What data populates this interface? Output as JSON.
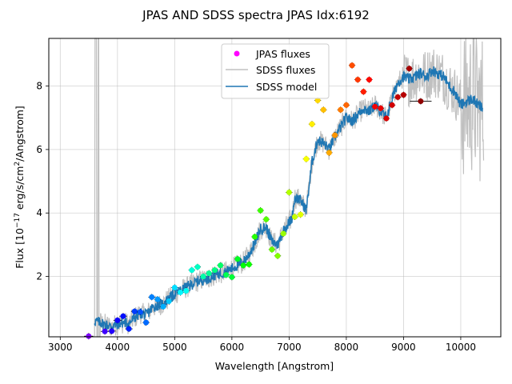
{
  "chart_data": {
    "type": "scatter",
    "title": "JPAS AND SDSS spectra JPAS Idx:6192",
    "xlabel": "Wavelength [Angstrom]",
    "ylabel_parts": {
      "pre": "Flux [10",
      "exp1": "−17",
      "mid": " erg/s/cm",
      "exp2": "2",
      "post": "/Angstrom]"
    },
    "xlim": [
      2800,
      10700
    ],
    "ylim": [
      0.1,
      9.5
    ],
    "grid": true,
    "xticks": [
      3000,
      4000,
      5000,
      6000,
      7000,
      8000,
      9000,
      10000
    ],
    "yticks": [
      2,
      4,
      6,
      8
    ],
    "legend": {
      "placement": "top-center",
      "entries": [
        {
          "label": "JPAS fluxes",
          "color": "#ff00ff",
          "kind": "marker"
        },
        {
          "label": "SDSS fluxes",
          "color": "#c0c0c0",
          "kind": "line"
        },
        {
          "label": "SDSS model",
          "color": "#1f77b4",
          "kind": "line"
        }
      ]
    },
    "series": [
      {
        "name": "JPAS fluxes",
        "points": [
          [
            3497,
            0.12,
            160
          ],
          [
            3780,
            0.27,
            145
          ],
          [
            3900,
            0.28,
            140
          ],
          [
            4000,
            0.62,
            140
          ],
          [
            4100,
            0.75,
            135
          ],
          [
            4200,
            0.35,
            130
          ],
          [
            4300,
            0.9,
            125
          ],
          [
            4400,
            0.88,
            120
          ],
          [
            4500,
            0.55,
            120
          ],
          [
            4600,
            1.35,
            120
          ],
          [
            4700,
            1.28,
            115
          ],
          [
            4800,
            1.05,
            115
          ],
          [
            4900,
            1.22,
            115
          ],
          [
            5000,
            1.65,
            115
          ],
          [
            5100,
            1.5,
            115
          ],
          [
            5200,
            1.55,
            115
          ],
          [
            5300,
            2.2,
            115
          ],
          [
            5400,
            2.3,
            115
          ],
          [
            5500,
            2.0,
            115
          ],
          [
            5600,
            2.1,
            115
          ],
          [
            5700,
            2.2,
            115
          ],
          [
            5800,
            2.35,
            115
          ],
          [
            5900,
            2.05,
            115
          ],
          [
            6000,
            1.98,
            115
          ],
          [
            6100,
            2.55,
            115
          ],
          [
            6200,
            2.35,
            115
          ],
          [
            6300,
            2.38,
            115
          ],
          [
            6400,
            3.25,
            115
          ],
          [
            6500,
            4.08,
            115
          ],
          [
            6600,
            3.8,
            115
          ],
          [
            6700,
            2.85,
            115
          ],
          [
            6800,
            2.65,
            115
          ],
          [
            6900,
            3.35,
            115
          ],
          [
            7000,
            4.65,
            115
          ],
          [
            7100,
            3.88,
            115
          ],
          [
            7200,
            3.95,
            115
          ],
          [
            7300,
            5.7,
            115
          ],
          [
            7400,
            6.8,
            115
          ],
          [
            7500,
            7.55,
            115
          ],
          [
            7600,
            7.25,
            115
          ],
          [
            7700,
            5.9,
            115
          ],
          [
            7800,
            6.45,
            115
          ],
          [
            7900,
            7.25,
            115
          ],
          [
            8000,
            7.4,
            115
          ],
          [
            8100,
            8.65,
            115
          ],
          [
            8200,
            8.2,
            115
          ],
          [
            8300,
            7.82,
            115
          ],
          [
            8400,
            8.2,
            115
          ],
          [
            8500,
            7.35,
            115
          ],
          [
            8600,
            7.3,
            115
          ],
          [
            8700,
            6.98,
            115
          ],
          [
            8800,
            7.4,
            115
          ],
          [
            8900,
            7.65,
            115
          ],
          [
            9000,
            7.72,
            115
          ],
          [
            9100,
            8.55,
            115
          ],
          [
            9300,
            7.52,
            380
          ]
        ]
      }
    ],
    "sdss_model": {
      "name": "SDSS model",
      "start": 3600,
      "end": 10380,
      "anchors": [
        [
          3600,
          0.6
        ],
        [
          3700,
          0.55
        ],
        [
          3800,
          0.48
        ],
        [
          3900,
          0.42
        ],
        [
          4000,
          0.5
        ],
        [
          4100,
          0.55
        ],
        [
          4200,
          0.52
        ],
        [
          4300,
          0.7
        ],
        [
          4400,
          0.85
        ],
        [
          4500,
          0.78
        ],
        [
          4600,
          1.0
        ],
        [
          4700,
          1.1
        ],
        [
          4800,
          1.15
        ],
        [
          4900,
          1.3
        ],
        [
          5000,
          1.45
        ],
        [
          5100,
          1.55
        ],
        [
          5200,
          1.65
        ],
        [
          5300,
          1.75
        ],
        [
          5400,
          1.85
        ],
        [
          5500,
          1.9
        ],
        [
          5600,
          1.95
        ],
        [
          5700,
          2.05
        ],
        [
          5800,
          2.1
        ],
        [
          5900,
          2.15
        ],
        [
          6000,
          2.25
        ],
        [
          6100,
          2.35
        ],
        [
          6200,
          2.45
        ],
        [
          6300,
          2.7
        ],
        [
          6400,
          3.05
        ],
        [
          6500,
          3.5
        ],
        [
          6600,
          3.55
        ],
        [
          6700,
          3.1
        ],
        [
          6800,
          3.0
        ],
        [
          6900,
          3.45
        ],
        [
          7000,
          3.7
        ],
        [
          7050,
          3.85
        ],
        [
          7100,
          4.5
        ],
        [
          7200,
          4.4
        ],
        [
          7300,
          4.1
        ],
        [
          7400,
          5.6
        ],
        [
          7500,
          6.3
        ],
        [
          7600,
          6.2
        ],
        [
          7700,
          6.0
        ],
        [
          7800,
          6.4
        ],
        [
          7900,
          6.7
        ],
        [
          8000,
          7.0
        ],
        [
          8100,
          6.9
        ],
        [
          8200,
          7.1
        ],
        [
          8300,
          7.3
        ],
        [
          8400,
          7.2
        ],
        [
          8500,
          7.4
        ],
        [
          8600,
          7.2
        ],
        [
          8700,
          7.0
        ],
        [
          8800,
          7.6
        ],
        [
          8900,
          8.1
        ],
        [
          9000,
          8.3
        ],
        [
          9100,
          8.2
        ],
        [
          9200,
          8.3
        ],
        [
          9300,
          8.4
        ],
        [
          9400,
          8.3
        ],
        [
          9500,
          8.5
        ],
        [
          9600,
          8.4
        ],
        [
          9700,
          8.3
        ],
        [
          9800,
          8.0
        ],
        [
          9900,
          7.8
        ],
        [
          10000,
          7.4
        ],
        [
          10100,
          7.5
        ],
        [
          10200,
          7.6
        ],
        [
          10300,
          7.4
        ],
        [
          10380,
          7.3
        ]
      ]
    },
    "sdss_fluxes": {
      "name": "SDSS fluxes",
      "start": 3600,
      "end": 10400,
      "note_noise_region": [
        3600,
        3700
      ]
    }
  }
}
